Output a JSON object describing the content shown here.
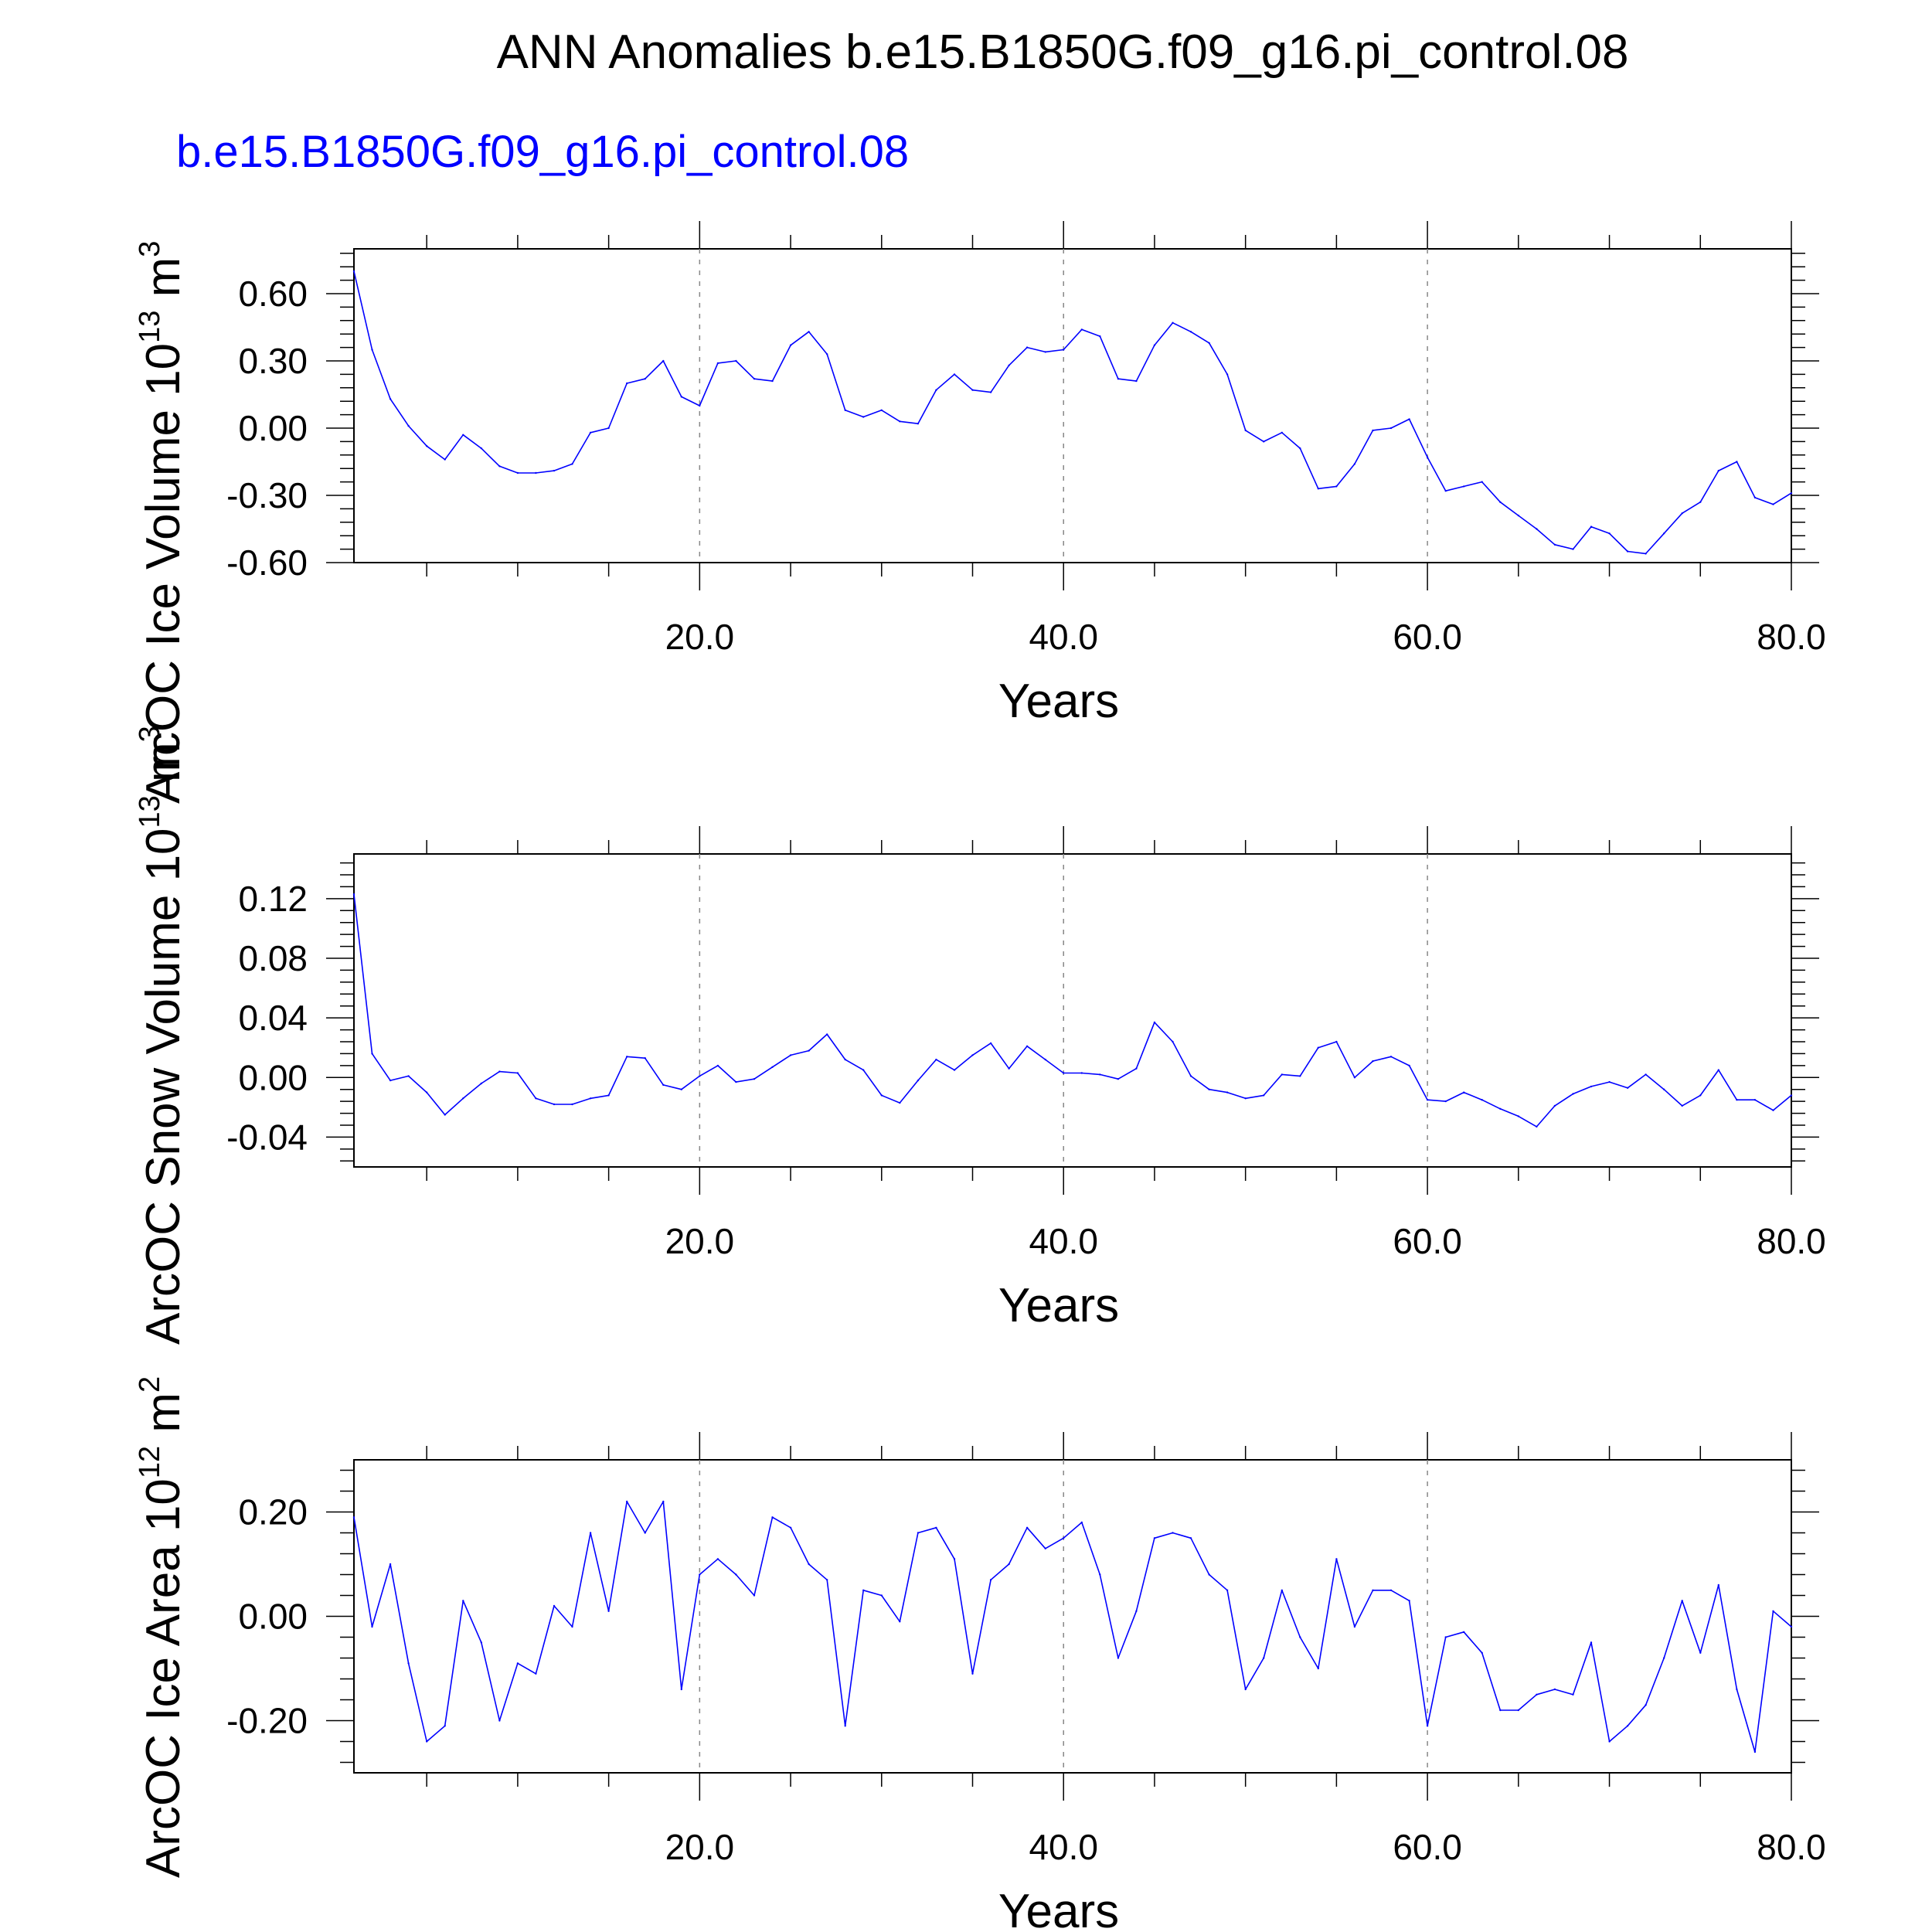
{
  "title": "ANN Anomalies b.e15.B1850G.f09_g16.pi_control.08",
  "subtitle": "b.e15.B1850G.f09_g16.pi_control.08",
  "colors": {
    "series": "#0000ff",
    "subtitle": "#0000ff",
    "axis": "#000000",
    "grid": "#888888"
  },
  "chart_data": [
    {
      "type": "line",
      "ylabel": "ArcOC Ice Volume 10",
      "ylabel_exp": "13",
      "ylabel_unit": "m",
      "ylabel_unit_exp": "3",
      "xlabel": "Years",
      "xlim": [
        1,
        80
      ],
      "ylim": [
        -0.6,
        0.8
      ],
      "xticks": [
        20,
        40,
        60,
        80
      ],
      "xtick_labels": [
        "20.0",
        "40.0",
        "60.0",
        "80.0"
      ],
      "yticks": [
        -0.6,
        -0.3,
        0.0,
        0.3,
        0.6
      ],
      "ytick_labels": [
        "-0.60",
        "-0.30",
        "0.00",
        "0.30",
        "0.60"
      ],
      "x": [
        1,
        2,
        3,
        4,
        5,
        6,
        7,
        8,
        9,
        10,
        11,
        12,
        13,
        14,
        15,
        16,
        17,
        18,
        19,
        20,
        21,
        22,
        23,
        24,
        25,
        26,
        27,
        28,
        29,
        30,
        31,
        32,
        33,
        34,
        35,
        36,
        37,
        38,
        39,
        40,
        41,
        42,
        43,
        44,
        45,
        46,
        47,
        48,
        49,
        50,
        51,
        52,
        53,
        54,
        55,
        56,
        57,
        58,
        59,
        60,
        61,
        62,
        63,
        64,
        65,
        66,
        67,
        68,
        69,
        70,
        71,
        72,
        73,
        74,
        75,
        76,
        77,
        78,
        79,
        80
      ],
      "values": [
        0.7,
        0.35,
        0.13,
        0.01,
        -0.08,
        -0.14,
        -0.03,
        -0.09,
        -0.17,
        -0.2,
        -0.2,
        -0.19,
        -0.16,
        -0.02,
        0.0,
        0.2,
        0.22,
        0.3,
        0.14,
        0.1,
        0.29,
        0.3,
        0.22,
        0.21,
        0.37,
        0.43,
        0.33,
        0.08,
        0.05,
        0.08,
        0.03,
        0.02,
        0.17,
        0.24,
        0.17,
        0.16,
        0.28,
        0.36,
        0.34,
        0.35,
        0.44,
        0.41,
        0.22,
        0.21,
        0.37,
        0.47,
        0.43,
        0.38,
        0.24,
        -0.01,
        -0.06,
        -0.02,
        -0.09,
        -0.27,
        -0.26,
        -0.16,
        -0.01,
        0.0,
        0.04,
        -0.13,
        -0.28,
        -0.26,
        -0.24,
        -0.33,
        -0.39,
        -0.45,
        -0.52,
        -0.54,
        -0.44,
        -0.47,
        -0.55,
        -0.56,
        -0.47,
        -0.38,
        -0.33,
        -0.19,
        -0.15,
        -0.31,
        -0.34,
        -0.29
      ]
    },
    {
      "type": "line",
      "ylabel": "ArcOC Snow Volume 10",
      "ylabel_exp": "13",
      "ylabel_unit": "m",
      "ylabel_unit_exp": "3",
      "xlabel": "Years",
      "xlim": [
        1,
        80
      ],
      "ylim": [
        -0.06,
        0.15
      ],
      "xticks": [
        20,
        40,
        60,
        80
      ],
      "xtick_labels": [
        "20.0",
        "40.0",
        "60.0",
        "80.0"
      ],
      "yticks": [
        -0.04,
        0.0,
        0.04,
        0.08,
        0.12
      ],
      "ytick_labels": [
        "-0.04",
        "0.00",
        "0.04",
        "0.08",
        "0.12"
      ],
      "x": [
        1,
        2,
        3,
        4,
        5,
        6,
        7,
        8,
        9,
        10,
        11,
        12,
        13,
        14,
        15,
        16,
        17,
        18,
        19,
        20,
        21,
        22,
        23,
        24,
        25,
        26,
        27,
        28,
        29,
        30,
        31,
        32,
        33,
        34,
        35,
        36,
        37,
        38,
        39,
        40,
        41,
        42,
        43,
        44,
        45,
        46,
        47,
        48,
        49,
        50,
        51,
        52,
        53,
        54,
        55,
        56,
        57,
        58,
        59,
        60,
        61,
        62,
        63,
        64,
        65,
        66,
        67,
        68,
        69,
        70,
        71,
        72,
        73,
        74,
        75,
        76,
        77,
        78,
        79,
        80
      ],
      "values": [
        0.123,
        0.016,
        -0.002,
        0.001,
        -0.01,
        -0.025,
        -0.014,
        -0.004,
        0.004,
        0.003,
        -0.014,
        -0.018,
        -0.018,
        -0.014,
        -0.012,
        0.014,
        0.013,
        -0.005,
        -0.008,
        0.001,
        0.008,
        -0.003,
        -0.001,
        0.007,
        0.015,
        0.018,
        0.029,
        0.012,
        0.005,
        -0.012,
        -0.017,
        -0.002,
        0.012,
        0.005,
        0.015,
        0.023,
        0.006,
        0.021,
        0.012,
        0.003,
        0.003,
        0.002,
        -0.001,
        0.006,
        0.037,
        0.024,
        0.001,
        -0.008,
        -0.01,
        -0.014,
        -0.012,
        0.002,
        0.001,
        0.02,
        0.024,
        0.0,
        0.011,
        0.014,
        0.008,
        -0.015,
        -0.016,
        -0.01,
        -0.015,
        -0.021,
        -0.026,
        -0.033,
        -0.019,
        -0.011,
        -0.006,
        -0.003,
        -0.007,
        0.002,
        -0.008,
        -0.019,
        -0.012,
        0.005,
        -0.015,
        -0.015,
        -0.022,
        -0.012
      ]
    },
    {
      "type": "line",
      "ylabel": "ArcOC Ice Area 10",
      "ylabel_exp": "12",
      "ylabel_unit": "m",
      "ylabel_unit_exp": "2",
      "xlabel": "Years",
      "xlim": [
        1,
        80
      ],
      "ylim": [
        -0.3,
        0.3
      ],
      "xticks": [
        20,
        40,
        60,
        80
      ],
      "xtick_labels": [
        "20.0",
        "40.0",
        "60.0",
        "80.0"
      ],
      "yticks": [
        -0.2,
        0.0,
        0.2
      ],
      "ytick_labels": [
        "-0.20",
        "0.00",
        "0.20"
      ],
      "x": [
        1,
        2,
        3,
        4,
        5,
        6,
        7,
        8,
        9,
        10,
        11,
        12,
        13,
        14,
        15,
        16,
        17,
        18,
        19,
        20,
        21,
        22,
        23,
        24,
        25,
        26,
        27,
        28,
        29,
        30,
        31,
        32,
        33,
        34,
        35,
        36,
        37,
        38,
        39,
        40,
        41,
        42,
        43,
        44,
        45,
        46,
        47,
        48,
        49,
        50,
        51,
        52,
        53,
        54,
        55,
        56,
        57,
        58,
        59,
        60,
        61,
        62,
        63,
        64,
        65,
        66,
        67,
        68,
        69,
        70,
        71,
        72,
        73,
        74,
        75,
        76,
        77,
        78,
        79,
        80
      ],
      "values": [
        0.19,
        -0.02,
        0.1,
        -0.09,
        -0.24,
        -0.21,
        0.03,
        -0.05,
        -0.2,
        -0.09,
        -0.11,
        0.02,
        -0.02,
        0.16,
        0.01,
        0.22,
        0.16,
        0.22,
        -0.14,
        0.08,
        0.11,
        0.08,
        0.04,
        0.19,
        0.17,
        0.1,
        0.07,
        -0.21,
        0.05,
        0.04,
        -0.01,
        0.16,
        0.17,
        0.11,
        -0.11,
        0.07,
        0.1,
        0.17,
        0.13,
        0.15,
        0.18,
        0.08,
        -0.08,
        0.01,
        0.15,
        0.16,
        0.15,
        0.08,
        0.05,
        -0.14,
        -0.08,
        0.05,
        -0.04,
        -0.1,
        0.11,
        -0.02,
        0.05,
        0.05,
        0.03,
        -0.21,
        -0.04,
        -0.03,
        -0.07,
        -0.18,
        -0.18,
        -0.15,
        -0.14,
        -0.15,
        -0.05,
        -0.24,
        -0.21,
        -0.17,
        -0.08,
        0.03,
        -0.07,
        0.06,
        -0.14,
        -0.26,
        0.01,
        -0.02
      ]
    }
  ]
}
